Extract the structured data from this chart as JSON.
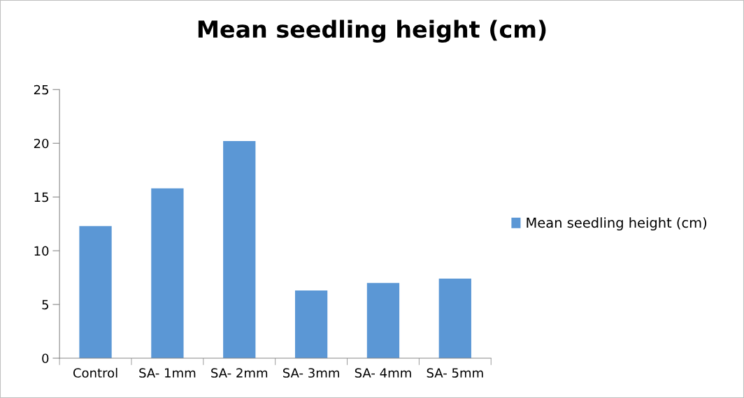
{
  "chart_data": {
    "type": "bar",
    "title": "Mean seedling height (cm)",
    "categories": [
      "Control",
      "SA- 1mm",
      "SA- 2mm",
      "SA- 3mm",
      "SA- 4mm",
      "SA- 5mm"
    ],
    "series": [
      {
        "name": "Mean seedling height (cm)",
        "color": "#5b97d5",
        "values": [
          12.3,
          15.8,
          20.2,
          6.3,
          7.0,
          7.4
        ]
      }
    ],
    "ylim": [
      0,
      25
    ],
    "yticks": [
      0,
      5,
      10,
      15,
      20,
      25
    ],
    "grid": false,
    "legend": "right"
  }
}
